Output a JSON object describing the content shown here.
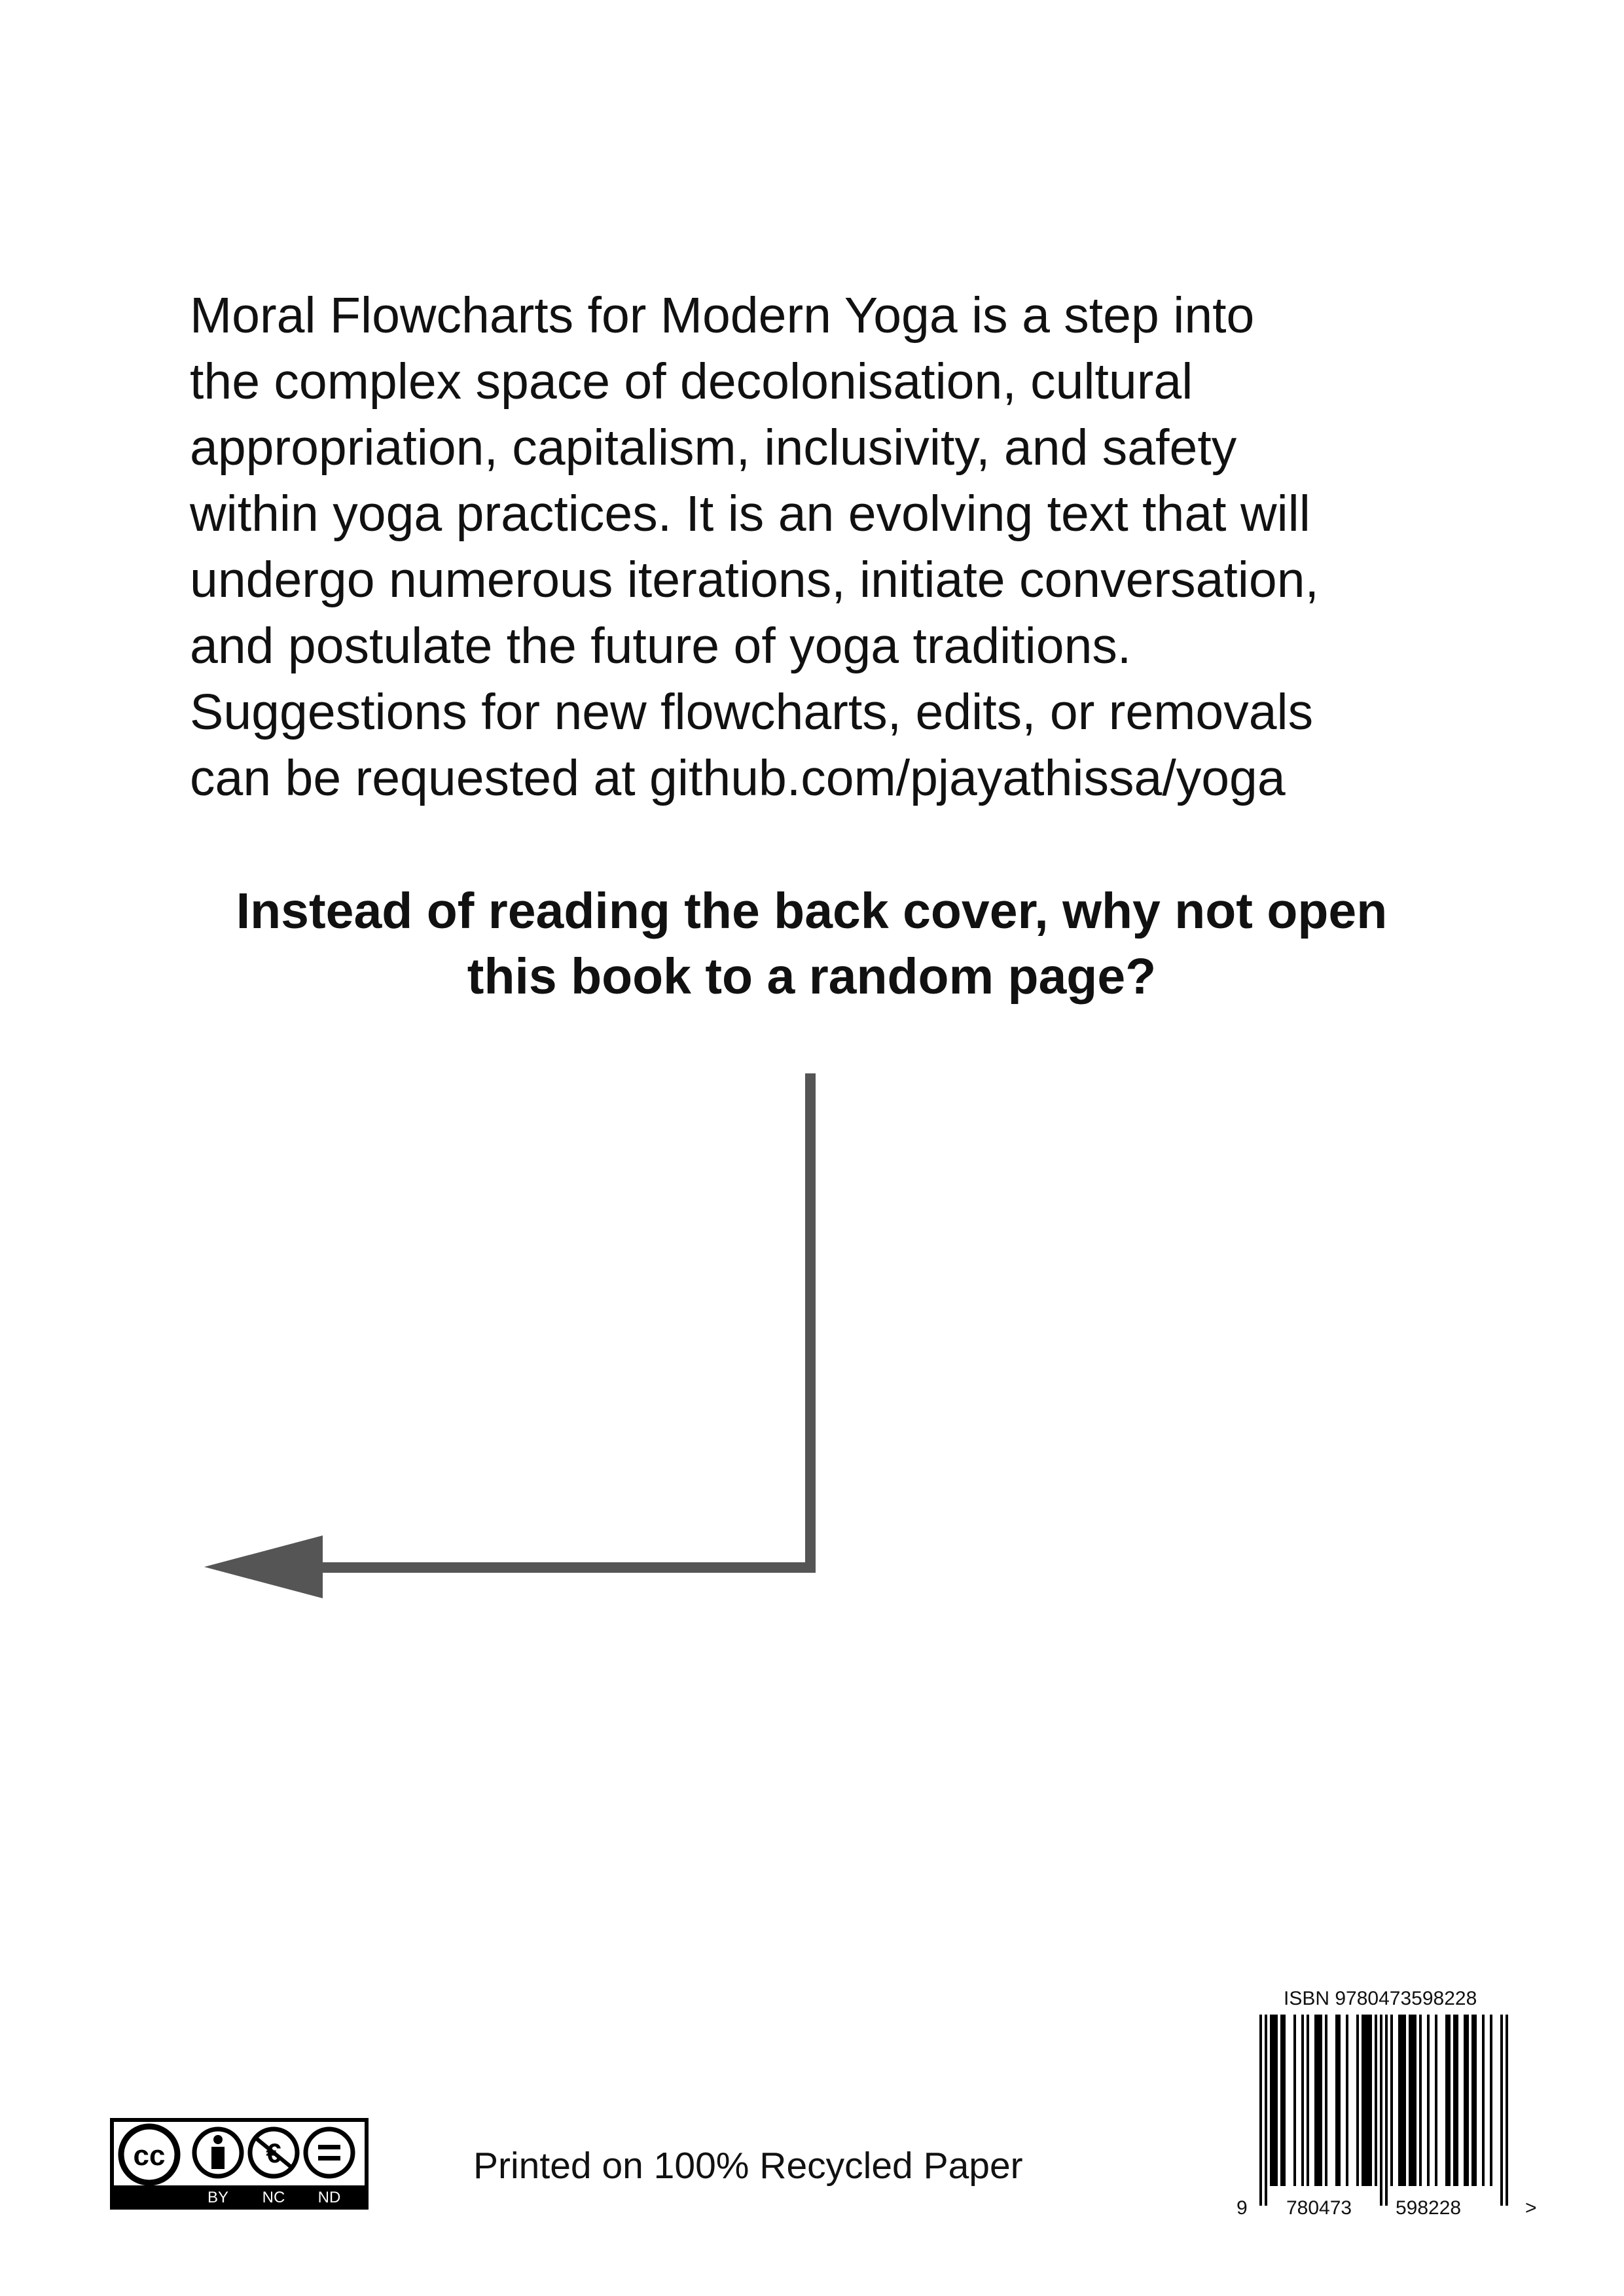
{
  "blurb": {
    "lines": [
      "Moral Flowcharts for Modern Yoga is a step into",
      "the complex space of decolonisation, cultural",
      "appropriation, capitalism, inclusivity, and safety",
      "within yoga practices. It is an evolving text that will",
      "undergo numerous iterations, initiate conversation,",
      "and postulate the future of yoga traditions.",
      "Suggestions for new flowcharts, edits, or removals",
      "can be requested at github.com/pjayathissa/yoga"
    ]
  },
  "prompt": {
    "line1": "Instead of reading the back cover, why not open",
    "line2": "this book to a random page?"
  },
  "arrow_color": "#555555",
  "license": {
    "cc_label": "cc",
    "by": "BY",
    "nc": "NC",
    "nd": "ND"
  },
  "footer": {
    "printed": "Printed on 100% Recycled Paper"
  },
  "isbn": {
    "label": "ISBN 9780473598228",
    "lead_digit": "9",
    "group1": "780473",
    "group2": "598228",
    "end_mark": ">"
  }
}
